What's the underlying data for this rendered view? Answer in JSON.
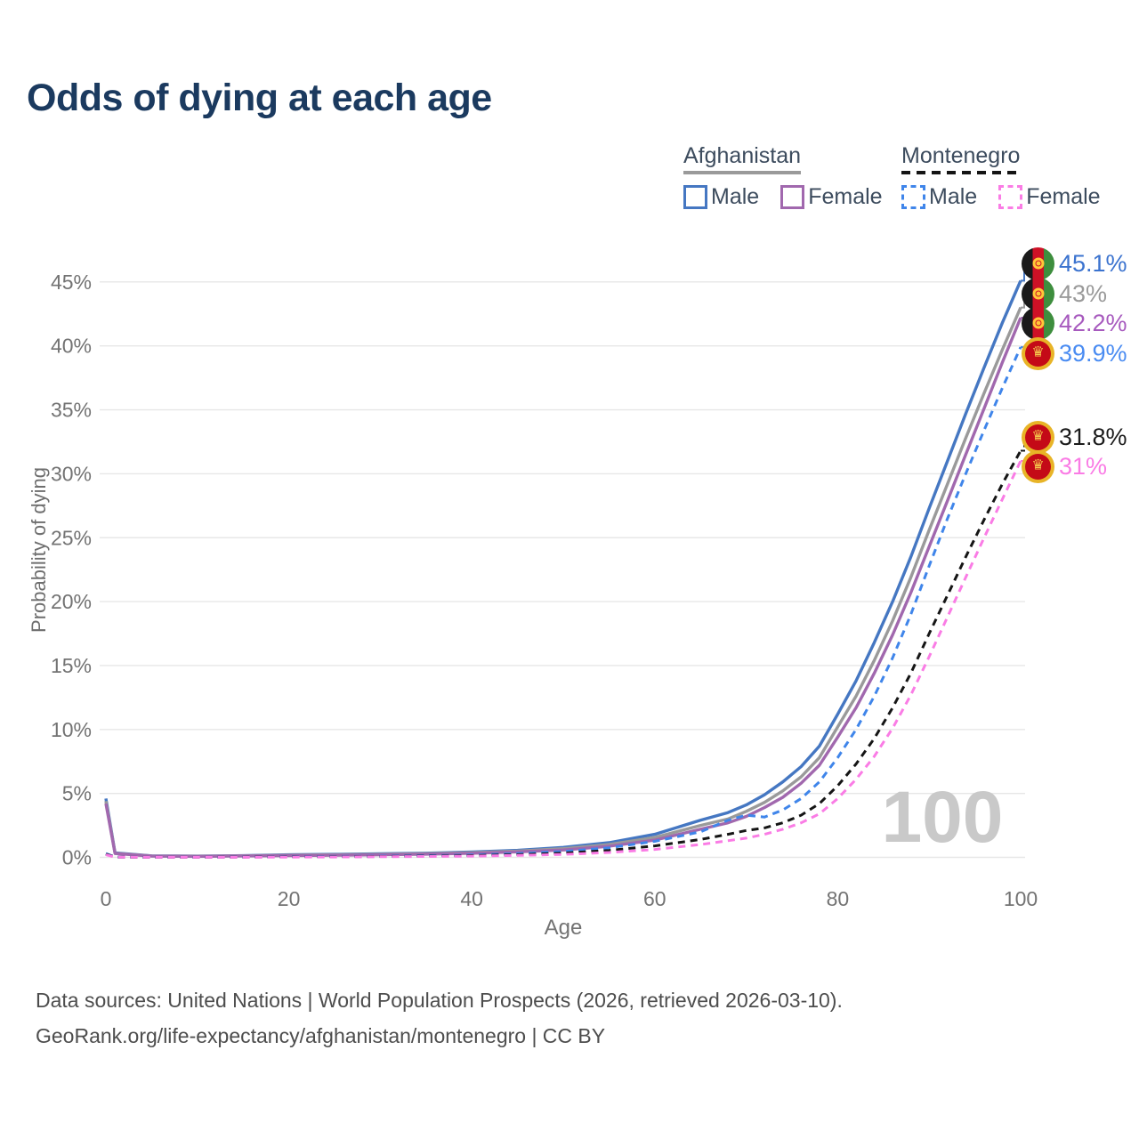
{
  "title": "Odds of dying at each age",
  "watermark": "100",
  "legend": {
    "groups": [
      {
        "country": "Afghanistan",
        "items": [
          {
            "label": "Male"
          },
          {
            "label": "Female"
          }
        ]
      },
      {
        "country": "Montenegro",
        "items": [
          {
            "label": "Male"
          },
          {
            "label": "Female"
          }
        ]
      }
    ]
  },
  "footer": {
    "line1": "Data sources: United Nations | World Population Prospects (2026, retrieved 2026-03-10).",
    "line2": "GeoRank.org/life-expectancy/afghanistan/montenegro | CC BY"
  },
  "chart_data": {
    "type": "line",
    "title": "Odds of dying at each age",
    "xlabel": "Age",
    "ylabel": "Probability of dying",
    "xlim": [
      0,
      100
    ],
    "ylim": [
      0,
      46
    ],
    "grid": true,
    "legend_position": "top-right",
    "x_ticks": [
      0,
      20,
      40,
      60,
      80,
      100
    ],
    "y_tick_values": [
      0,
      5,
      10,
      15,
      20,
      25,
      30,
      35,
      40,
      45
    ],
    "y_tick_suffix": "%",
    "ages": [
      0,
      1,
      5,
      10,
      15,
      20,
      25,
      30,
      35,
      40,
      45,
      50,
      55,
      60,
      65,
      68,
      70,
      72,
      74,
      76,
      78,
      80,
      82,
      84,
      86,
      88,
      90,
      92,
      94,
      96,
      98,
      100
    ],
    "series": [
      {
        "name": "Afghanistan Male",
        "country": "Afghanistan",
        "sex": "male",
        "color": "#4577c2",
        "label_color": "#3b73cf",
        "dashed": false,
        "flag": "afghanistan",
        "end_label": "45.1%",
        "end_value": 45.1,
        "values": [
          4.6,
          0.35,
          0.12,
          0.1,
          0.13,
          0.2,
          0.24,
          0.28,
          0.33,
          0.42,
          0.55,
          0.78,
          1.15,
          1.8,
          2.9,
          3.5,
          4.1,
          4.9,
          5.9,
          7.1,
          8.7,
          11.2,
          13.8,
          16.8,
          20.0,
          23.5,
          27.3,
          31.0,
          34.7,
          38.3,
          41.8,
          45.1
        ]
      },
      {
        "name": "Afghanistan Total",
        "country": "Afghanistan",
        "sex": "both",
        "color": "#9a9a9a",
        "label_color": "#9a9a9a",
        "dashed": false,
        "flag": "afghanistan",
        "end_label": "43%",
        "end_value": 43.0,
        "values": [
          4.4,
          0.32,
          0.11,
          0.09,
          0.12,
          0.17,
          0.2,
          0.24,
          0.29,
          0.37,
          0.49,
          0.68,
          1.0,
          1.55,
          2.5,
          3.0,
          3.6,
          4.3,
          5.2,
          6.3,
          7.8,
          10.2,
          12.6,
          15.4,
          18.5,
          21.9,
          25.6,
          29.2,
          32.8,
          36.3,
          39.7,
          43.0
        ]
      },
      {
        "name": "Afghanistan Female",
        "country": "Afghanistan",
        "sex": "female",
        "color": "#a168ae",
        "label_color": "#a75abe",
        "dashed": false,
        "flag": "afghanistan",
        "end_label": "42.2%",
        "end_value": 42.2,
        "values": [
          4.2,
          0.3,
          0.1,
          0.08,
          0.11,
          0.14,
          0.17,
          0.2,
          0.25,
          0.32,
          0.43,
          0.58,
          0.87,
          1.35,
          2.2,
          2.7,
          3.2,
          3.9,
          4.7,
          5.8,
          7.2,
          9.4,
          11.7,
          14.4,
          17.4,
          20.7,
          24.3,
          27.9,
          31.5,
          35.1,
          38.7,
          42.2
        ]
      },
      {
        "name": "Montenegro Male",
        "country": "Montenegro",
        "sex": "male",
        "color": "#3f85ea",
        "label_color": "#4a8cf2",
        "dashed": true,
        "flag": "montenegro",
        "end_label": "39.9%",
        "end_value": 39.9,
        "values": [
          0.3,
          0.03,
          0.01,
          0.01,
          0.03,
          0.06,
          0.08,
          0.1,
          0.13,
          0.19,
          0.29,
          0.46,
          0.75,
          1.25,
          2.0,
          2.9,
          3.3,
          3.15,
          3.7,
          4.6,
          5.9,
          7.8,
          10.0,
          12.6,
          15.6,
          19.0,
          22.8,
          26.5,
          30.0,
          33.4,
          36.7,
          39.9
        ]
      },
      {
        "name": "Montenegro Total",
        "country": "Montenegro",
        "sex": "both",
        "color": "#151515",
        "label_color": "#1b1b1b",
        "dashed": true,
        "flag": "montenegro",
        "end_label": "31.8%",
        "end_value": 31.8,
        "values": [
          0.25,
          0.02,
          0.01,
          0.01,
          0.02,
          0.04,
          0.05,
          0.07,
          0.1,
          0.14,
          0.21,
          0.33,
          0.54,
          0.9,
          1.4,
          1.8,
          2.1,
          2.3,
          2.7,
          3.3,
          4.2,
          5.6,
          7.3,
          9.3,
          11.7,
          14.4,
          17.5,
          20.5,
          23.5,
          26.4,
          29.2,
          31.8
        ]
      },
      {
        "name": "Montenegro Female",
        "country": "Montenegro",
        "sex": "female",
        "color": "#fa7ce5",
        "label_color": "#fa7ce5",
        "dashed": true,
        "flag": "montenegro",
        "end_label": "31%",
        "end_value": 31.0,
        "values": [
          0.2,
          0.02,
          0.01,
          0.01,
          0.01,
          0.02,
          0.03,
          0.05,
          0.07,
          0.1,
          0.15,
          0.23,
          0.38,
          0.62,
          1.0,
          1.3,
          1.5,
          1.8,
          2.2,
          2.7,
          3.4,
          4.6,
          6.1,
          7.9,
          10.1,
          12.7,
          15.7,
          18.8,
          21.9,
          25.0,
          28.0,
          31.0
        ]
      }
    ]
  },
  "colors": {
    "title": "#1b3a5f",
    "axis_text": "#737373",
    "gridline": "#e7e7e7",
    "watermark": "#c9c9c9",
    "legend_text": "#3d4c5e",
    "footer_text": "#4d4d4d"
  }
}
